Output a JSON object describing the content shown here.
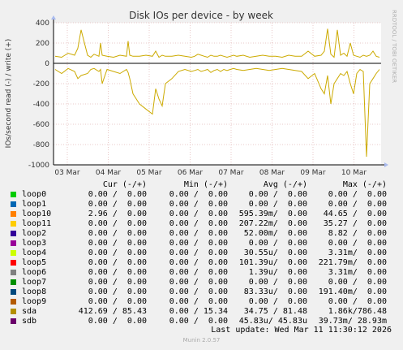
{
  "chart_data": {
    "type": "line",
    "title": "Disk IOs per device - by week",
    "ylabel": "IOs/second read (-) / write (+)",
    "ylim": [
      -1000,
      400
    ],
    "yticks": [
      400,
      200,
      0,
      -200,
      -400,
      -600,
      -800,
      -1000
    ],
    "yticklabels": [
      "400",
      "200",
      "0",
      "-200",
      "-400",
      "-600",
      "-800",
      "-1000"
    ],
    "xticklabels": [
      "03 Mar",
      "04 Mar",
      "05 Mar",
      "06 Mar",
      "07 Mar",
      "08 Mar",
      "09 Mar",
      "10 Mar"
    ],
    "grid": true,
    "side_label": "RRDTOOL / TOBI OETIKER",
    "series": [
      {
        "name": "sda",
        "color": "#ccaa00",
        "x": [
          0,
          4,
          8,
          12,
          14,
          16,
          20,
          22,
          24,
          27,
          28,
          29,
          32,
          36,
          40,
          44,
          45,
          46,
          48,
          52,
          56,
          60,
          62,
          64,
          66,
          68,
          72,
          76,
          80,
          84,
          86,
          88,
          90,
          92,
          94,
          96,
          98,
          100,
          102,
          104,
          106,
          108,
          110,
          112,
          116,
          120,
          124,
          128,
          132,
          136,
          140,
          144,
          148,
          152,
          156,
          160,
          164,
          166,
          168,
          170,
          172,
          174,
          176,
          178,
          180,
          182,
          184,
          186,
          188,
          190,
          192,
          194,
          196,
          198,
          200
        ],
        "write": [
          70,
          60,
          100,
          80,
          150,
          330,
          80,
          60,
          90,
          70,
          200,
          80,
          70,
          60,
          80,
          70,
          220,
          80,
          70,
          70,
          80,
          70,
          120,
          60,
          80,
          70,
          70,
          80,
          70,
          60,
          70,
          90,
          80,
          70,
          60,
          80,
          70,
          70,
          80,
          70,
          60,
          70,
          80,
          70,
          80,
          60,
          70,
          80,
          70,
          70,
          60,
          80,
          70,
          70,
          120,
          70,
          80,
          120,
          340,
          90,
          60,
          330,
          80,
          100,
          70,
          200,
          80,
          70,
          60,
          80,
          70,
          80,
          120,
          70,
          60
        ],
        "read": [
          -60,
          -100,
          -50,
          -80,
          -150,
          -120,
          -100,
          -60,
          -50,
          -80,
          -60,
          -200,
          -60,
          -80,
          -100,
          -60,
          -90,
          -150,
          -300,
          -400,
          -450,
          -500,
          -250,
          -350,
          -420,
          -200,
          -150,
          -80,
          -60,
          -80,
          -70,
          -60,
          -80,
          -70,
          -60,
          -90,
          -70,
          -60,
          -80,
          -60,
          -70,
          -60,
          -50,
          -60,
          -70,
          -60,
          -50,
          -60,
          -70,
          -60,
          -50,
          -60,
          -70,
          -80,
          -150,
          -100,
          -250,
          -300,
          -120,
          -400,
          -200,
          -150,
          -100,
          -120,
          -80,
          -200,
          -300,
          -100,
          -60,
          -80,
          -920,
          -200,
          -150,
          -100,
          -60
        ]
      }
    ]
  },
  "legend": {
    "header": {
      "cur": "Cur (-/+)",
      "min": "Min (-/+)",
      "avg": "Avg (-/+)",
      "max": "Max (-/+)"
    },
    "rows": [
      {
        "name": "loop0",
        "color": "#00cc00",
        "cur": "0.00 /  0.00",
        "min": "0.00 /  0.00",
        "avg": "0.00 /  0.00",
        "max": "0.00 /  0.00"
      },
      {
        "name": "loop1",
        "color": "#0066b3",
        "cur": "0.00 /  0.00",
        "min": "0.00 /  0.00",
        "avg": "0.00 /  0.00",
        "max": "0.00 /  0.00"
      },
      {
        "name": "loop10",
        "color": "#ff8000",
        "cur": "2.96 /  0.00",
        "min": "0.00 /  0.00",
        "avg": "595.39m/  0.00",
        "max": "44.65 /  0.00"
      },
      {
        "name": "loop11",
        "color": "#ffcc00",
        "cur": "0.00 /  0.00",
        "min": "0.00 /  0.00",
        "avg": "207.22m/  0.00",
        "max": "35.27 /  0.00"
      },
      {
        "name": "loop2",
        "color": "#330099",
        "cur": "0.00 /  0.00",
        "min": "0.00 /  0.00",
        "avg": "52.00m/  0.00",
        "max": "8.82 /  0.00"
      },
      {
        "name": "loop3",
        "color": "#990099",
        "cur": "0.00 /  0.00",
        "min": "0.00 /  0.00",
        "avg": "0.00 /  0.00",
        "max": "0.00 /  0.00"
      },
      {
        "name": "loop4",
        "color": "#ccff00",
        "cur": "0.00 /  0.00",
        "min": "0.00 /  0.00",
        "avg": "30.55u/  0.00",
        "max": "3.31m/  0.00"
      },
      {
        "name": "loop5",
        "color": "#ff0000",
        "cur": "0.00 /  0.00",
        "min": "0.00 /  0.00",
        "avg": "101.39u/  0.00",
        "max": "221.79m/  0.00"
      },
      {
        "name": "loop6",
        "color": "#808080",
        "cur": "0.00 /  0.00",
        "min": "0.00 /  0.00",
        "avg": "1.39u/  0.00",
        "max": "3.31m/  0.00"
      },
      {
        "name": "loop7",
        "color": "#008f00",
        "cur": "0.00 /  0.00",
        "min": "0.00 /  0.00",
        "avg": "0.00 /  0.00",
        "max": "0.00 /  0.00"
      },
      {
        "name": "loop8",
        "color": "#00487d",
        "cur": "0.00 /  0.00",
        "min": "0.00 /  0.00",
        "avg": "83.33u/  0.00",
        "max": "191.40m/  0.00"
      },
      {
        "name": "loop9",
        "color": "#b35a00",
        "cur": "0.00 /  0.00",
        "min": "0.00 /  0.00",
        "avg": "0.00 /  0.00",
        "max": "0.00 /  0.00"
      },
      {
        "name": "sda",
        "color": "#b38f00",
        "cur": "412.69 / 85.43",
        "min": "0.00 / 15.34",
        "avg": "34.75 / 81.48",
        "max": "1.86k/786.48"
      },
      {
        "name": "sdb",
        "color": "#6b006b",
        "cur": "0.00 /  0.00",
        "min": "0.00 /  0.00",
        "avg": "45.83u/ 45.83u",
        "max": "39.73m/ 28.93m"
      }
    ]
  },
  "footer": {
    "last_update": "Last update: Wed Mar 11 11:30:12 2026",
    "version": "Munin 2.0.57"
  }
}
